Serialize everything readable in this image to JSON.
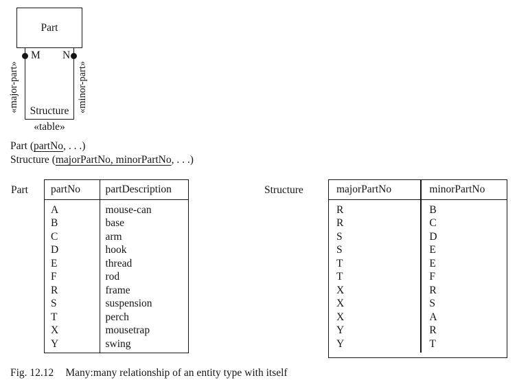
{
  "colors": {
    "ink": "#151515",
    "background": "#ffffff"
  },
  "uml": {
    "entity_label": "Part",
    "mult_left": "M",
    "mult_right": "N",
    "role_left": "«major-part»",
    "role_right": "«minor-part»",
    "relationship_label": "Structure",
    "stereotype_label": "«table»"
  },
  "schema_lines": [
    {
      "prefix": "Part (",
      "underlined": "partNo",
      "suffix": ", . . .)"
    },
    {
      "prefix": "Structure (",
      "underlined": "majorPartNo, minorPartNo",
      "suffix": ", . . .)"
    }
  ],
  "tables": [
    {
      "label": "Part",
      "headers": [
        "partNo",
        "partDescription"
      ],
      "rows": [
        [
          "A",
          "mouse-can"
        ],
        [
          "B",
          "base"
        ],
        [
          "C",
          "arm"
        ],
        [
          "D",
          "hook"
        ],
        [
          "E",
          "thread"
        ],
        [
          "F",
          "rod"
        ],
        [
          "R",
          "frame"
        ],
        [
          "S",
          "suspension"
        ],
        [
          "T",
          "perch"
        ],
        [
          "X",
          "mousetrap"
        ],
        [
          "Y",
          "swing"
        ]
      ]
    },
    {
      "label": "Structure",
      "headers": [
        "majorPartNo",
        "minorPartNo"
      ],
      "rows": [
        [
          "R",
          "B"
        ],
        [
          "R",
          "C"
        ],
        [
          "S",
          "D"
        ],
        [
          "S",
          "E"
        ],
        [
          "T",
          "E"
        ],
        [
          "T",
          "F"
        ],
        [
          "X",
          "R"
        ],
        [
          "X",
          "S"
        ],
        [
          "X",
          "A"
        ],
        [
          "Y",
          "R"
        ],
        [
          "Y",
          "T"
        ]
      ]
    }
  ],
  "caption": {
    "fig_label": "Fig. 12.12",
    "text": "Many:many relationship of an entity type with itself"
  }
}
